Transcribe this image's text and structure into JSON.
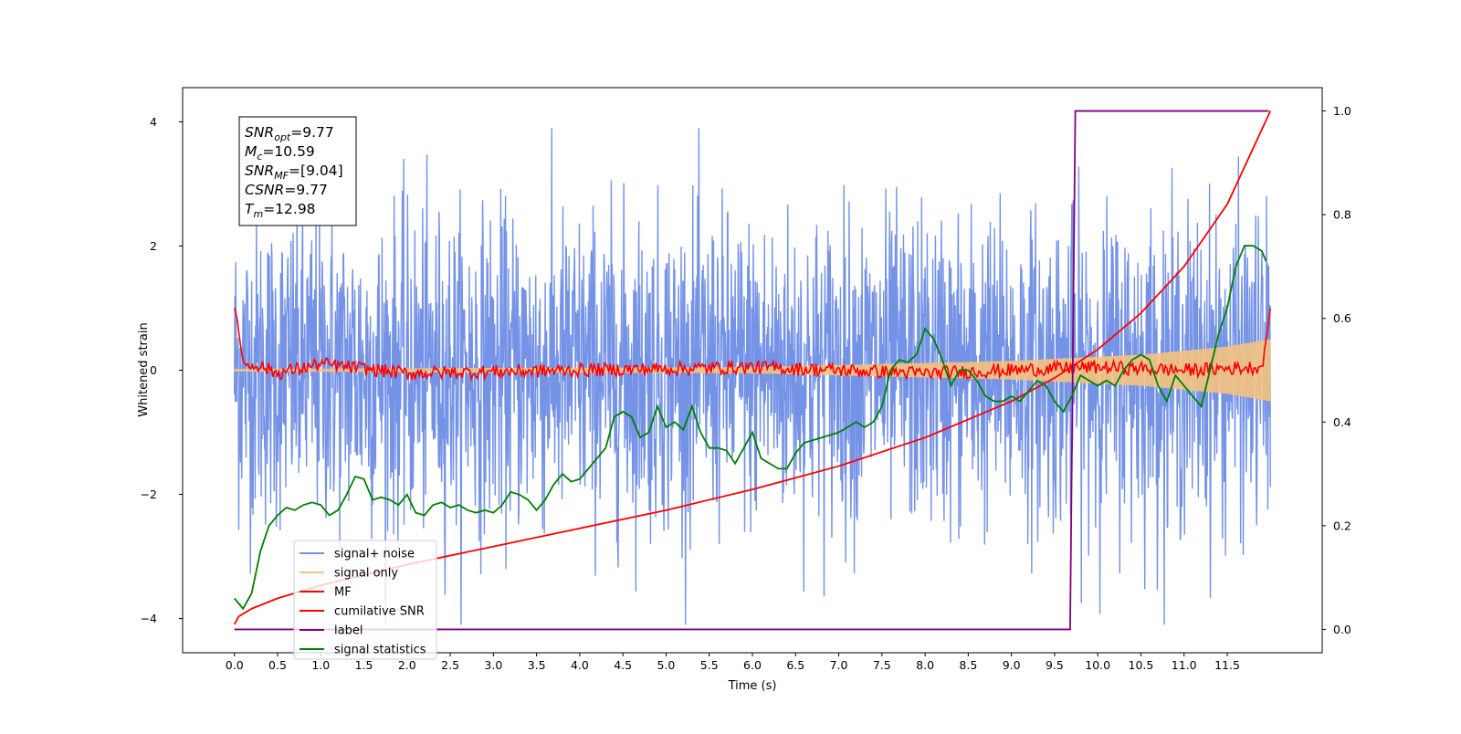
{
  "chart_data": {
    "type": "line",
    "xlabel": "Time (s)",
    "ylabel": "Whitened strain",
    "xlim": [
      -0.6,
      12.6
    ],
    "ylim": [
      -4.55,
      4.55
    ],
    "y2lim": [
      -0.045,
      1.045
    ],
    "x_ticks": [
      "0.0",
      "0.5",
      "1.0",
      "1.5",
      "2.0",
      "2.5",
      "3.0",
      "3.5",
      "4.0",
      "4.5",
      "5.0",
      "5.5",
      "6.0",
      "6.5",
      "7.0",
      "7.5",
      "8.0",
      "8.5",
      "9.0",
      "9.5",
      "10.0",
      "10.5",
      "11.0",
      "11.5"
    ],
    "x_tick_values": [
      0.0,
      0.5,
      1.0,
      1.5,
      2.0,
      2.5,
      3.0,
      3.5,
      4.0,
      4.5,
      5.0,
      5.5,
      6.0,
      6.5,
      7.0,
      7.5,
      8.0,
      8.5,
      9.0,
      9.5,
      10.0,
      10.5,
      11.0,
      11.5
    ],
    "y_ticks": [
      "4",
      "2",
      "0",
      "−2",
      "−4"
    ],
    "y_tick_values": [
      4,
      2,
      0,
      -2,
      -4
    ],
    "y2_ticks": [
      "1.0",
      "0.8",
      "0.6",
      "0.4",
      "0.2",
      "0.0"
    ],
    "y2_tick_values": [
      1.0,
      0.8,
      0.6,
      0.4,
      0.2,
      0.0
    ],
    "grid": false,
    "legend_position": "lower-left",
    "annotation": {
      "lines": [
        {
          "base": "SNR",
          "sub": "opt",
          "value": "=9.77"
        },
        {
          "base": "M",
          "sub": "c",
          "value": "=10.59"
        },
        {
          "base": "SNR",
          "sub": "MF",
          "value": "=[9.04]"
        },
        {
          "base": "CSNR",
          "sub": "",
          "value": "=9.77"
        },
        {
          "base": "T",
          "sub": "m",
          "value": "=12.98"
        }
      ]
    },
    "series": [
      {
        "name": "signal+ noise",
        "color": "#7492e6",
        "axis": "left",
        "style": "noise",
        "x_range": [
          0.0,
          12.0
        ],
        "mean": 0.0,
        "amplitude_range": [
          -4.1,
          3.9
        ]
      },
      {
        "name": "signal only",
        "color": "#f4c27f",
        "axis": "left",
        "style": "chirp",
        "x_range": [
          0.0,
          12.0
        ],
        "envelope": [
          [
            0.0,
            0.02
          ],
          [
            6.0,
            0.05
          ],
          [
            9.0,
            0.15
          ],
          [
            10.5,
            0.25
          ],
          [
            11.5,
            0.38
          ],
          [
            12.0,
            0.5
          ]
        ]
      },
      {
        "name": "MF",
        "color": "#ff0000",
        "axis": "left",
        "style": "mf",
        "x": [
          0.0,
          0.03,
          0.06,
          0.1,
          0.15,
          0.25,
          0.5,
          1.0,
          2.0,
          4.0,
          6.0,
          8.0,
          10.0,
          11.0,
          11.9,
          11.95,
          12.0
        ],
        "y": [
          1.0,
          0.85,
          0.5,
          0.15,
          0.05,
          0.1,
          -0.05,
          0.1,
          -0.05,
          0.0,
          0.05,
          -0.05,
          0.05,
          0.0,
          0.05,
          0.5,
          1.0
        ]
      },
      {
        "name": "cumilative SNR",
        "color": "#ff0000",
        "axis": "right",
        "style": "line",
        "x": [
          0.0,
          0.05,
          0.2,
          0.5,
          1.0,
          1.5,
          2.0,
          3.0,
          4.0,
          5.0,
          6.0,
          7.0,
          8.0,
          8.5,
          9.0,
          9.5,
          10.0,
          10.5,
          11.0,
          11.5,
          12.0
        ],
        "y": [
          0.01,
          0.025,
          0.04,
          0.06,
          0.085,
          0.105,
          0.125,
          0.16,
          0.195,
          0.23,
          0.27,
          0.315,
          0.37,
          0.405,
          0.44,
          0.485,
          0.54,
          0.61,
          0.7,
          0.82,
          1.0
        ]
      },
      {
        "name": "label",
        "color": "#800080",
        "axis": "right",
        "style": "line",
        "x": [
          0.0,
          9.68,
          9.74,
          11.98
        ],
        "y": [
          0.0,
          0.0,
          1.0,
          1.0
        ]
      },
      {
        "name": "signal statistics",
        "color": "#008000",
        "axis": "right",
        "style": "line",
        "x": [
          0.0,
          0.1,
          0.2,
          0.3,
          0.4,
          0.5,
          0.6,
          0.7,
          0.8,
          0.9,
          1.0,
          1.1,
          1.2,
          1.3,
          1.4,
          1.5,
          1.6,
          1.7,
          1.8,
          1.9,
          2.0,
          2.1,
          2.2,
          2.3,
          2.4,
          2.5,
          2.6,
          2.7,
          2.8,
          2.9,
          3.0,
          3.1,
          3.2,
          3.3,
          3.4,
          3.5,
          3.6,
          3.7,
          3.8,
          3.9,
          4.0,
          4.1,
          4.2,
          4.3,
          4.4,
          4.5,
          4.6,
          4.7,
          4.8,
          4.9,
          5.0,
          5.1,
          5.2,
          5.3,
          5.4,
          5.5,
          5.6,
          5.7,
          5.8,
          5.9,
          6.0,
          6.1,
          6.2,
          6.3,
          6.4,
          6.5,
          6.6,
          6.7,
          6.8,
          6.9,
          7.0,
          7.1,
          7.2,
          7.3,
          7.4,
          7.5,
          7.6,
          7.7,
          7.8,
          7.9,
          8.0,
          8.1,
          8.2,
          8.3,
          8.4,
          8.5,
          8.6,
          8.7,
          8.8,
          8.9,
          9.0,
          9.1,
          9.2,
          9.3,
          9.4,
          9.5,
          9.6,
          9.7,
          9.8,
          9.9,
          10.0,
          10.1,
          10.2,
          10.3,
          10.4,
          10.5,
          10.6,
          10.7,
          10.8,
          10.9,
          11.0,
          11.1,
          11.2,
          11.3,
          11.4,
          11.5,
          11.6,
          11.7,
          11.8,
          11.9,
          11.95
        ],
        "y": [
          0.06,
          0.04,
          0.07,
          0.15,
          0.2,
          0.22,
          0.235,
          0.23,
          0.24,
          0.245,
          0.24,
          0.22,
          0.23,
          0.26,
          0.295,
          0.29,
          0.25,
          0.255,
          0.25,
          0.24,
          0.26,
          0.225,
          0.22,
          0.24,
          0.245,
          0.235,
          0.24,
          0.23,
          0.225,
          0.23,
          0.225,
          0.24,
          0.265,
          0.26,
          0.25,
          0.23,
          0.25,
          0.28,
          0.3,
          0.285,
          0.29,
          0.31,
          0.33,
          0.35,
          0.41,
          0.42,
          0.41,
          0.37,
          0.38,
          0.43,
          0.39,
          0.4,
          0.385,
          0.43,
          0.38,
          0.35,
          0.35,
          0.345,
          0.32,
          0.35,
          0.38,
          0.33,
          0.32,
          0.31,
          0.31,
          0.34,
          0.36,
          0.365,
          0.37,
          0.375,
          0.38,
          0.39,
          0.4,
          0.39,
          0.4,
          0.43,
          0.5,
          0.52,
          0.515,
          0.53,
          0.58,
          0.56,
          0.52,
          0.47,
          0.5,
          0.5,
          0.48,
          0.45,
          0.44,
          0.44,
          0.45,
          0.44,
          0.46,
          0.48,
          0.47,
          0.44,
          0.42,
          0.45,
          0.49,
          0.48,
          0.47,
          0.48,
          0.47,
          0.5,
          0.52,
          0.53,
          0.52,
          0.47,
          0.44,
          0.49,
          0.47,
          0.45,
          0.43,
          0.5,
          0.57,
          0.62,
          0.7,
          0.74,
          0.74,
          0.73,
          0.71
        ]
      }
    ]
  }
}
